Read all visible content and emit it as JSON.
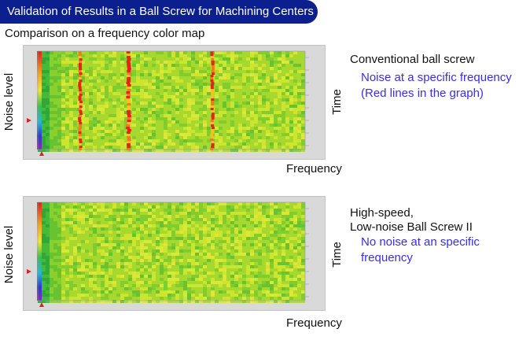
{
  "header": {
    "title": "Validation of Results in a Ball Screw for Machining Centers",
    "subtitle": "Comparison on a frequency color map"
  },
  "colors": {
    "header_bg": "#0b1f8f",
    "note_text": "#3a2ee0",
    "map_base": "#9bd62a",
    "noise_line": "#e8241a"
  },
  "panels": [
    {
      "y_label": "Noise level",
      "x_label": "Frequency",
      "right_label": "Time",
      "title_line1": "Conventional ball screw",
      "title_line2": "",
      "note_line1": "Noise at a specific frequency",
      "note_line2": "(Red lines in the graph)"
    },
    {
      "y_label": "Noise level",
      "x_label": "Frequency",
      "right_label": "Time",
      "title_line1": "High-speed,",
      "title_line2": "Low-noise Ball Screw II",
      "note_line1": "No noise at an specific",
      "note_line2": "frequency"
    }
  ]
}
